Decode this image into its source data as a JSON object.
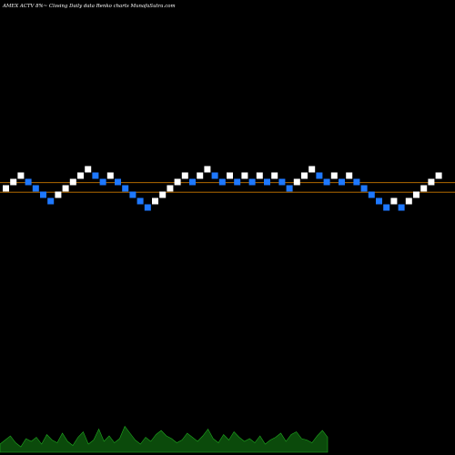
{
  "header": {
    "title": "AMEX  ACTV 8%~  Closing Daily data  Renko  charts MunafaSutra.com"
  },
  "colors": {
    "background": "#000000",
    "up_brick": "#ffffff",
    "down_brick": "#1e78ff",
    "reference_line": "#cc7a00",
    "volume_fill": "#0b4a0b",
    "volume_stroke": "#1fa81f"
  },
  "chart_data": {
    "type": "renko",
    "title": "AMEX  ACTV 8%~  Closing Daily data  Renko  charts MunafaSutra.com",
    "bricks": [
      {
        "level": 0,
        "dir": "up"
      },
      {
        "level": 1,
        "dir": "up"
      },
      {
        "level": 2,
        "dir": "up"
      },
      {
        "level": 1,
        "dir": "down"
      },
      {
        "level": 0,
        "dir": "down"
      },
      {
        "level": -1,
        "dir": "down"
      },
      {
        "level": -2,
        "dir": "down"
      },
      {
        "level": -1,
        "dir": "up"
      },
      {
        "level": 0,
        "dir": "up"
      },
      {
        "level": 1,
        "dir": "up"
      },
      {
        "level": 2,
        "dir": "up"
      },
      {
        "level": 3,
        "dir": "up"
      },
      {
        "level": 2,
        "dir": "down"
      },
      {
        "level": 1,
        "dir": "down"
      },
      {
        "level": 2,
        "dir": "up"
      },
      {
        "level": 1,
        "dir": "down"
      },
      {
        "level": 0,
        "dir": "down"
      },
      {
        "level": -1,
        "dir": "down"
      },
      {
        "level": -2,
        "dir": "down"
      },
      {
        "level": -3,
        "dir": "down"
      },
      {
        "level": -2,
        "dir": "up"
      },
      {
        "level": -1,
        "dir": "up"
      },
      {
        "level": 0,
        "dir": "up"
      },
      {
        "level": 1,
        "dir": "up"
      },
      {
        "level": 2,
        "dir": "up"
      },
      {
        "level": 1,
        "dir": "down"
      },
      {
        "level": 2,
        "dir": "up"
      },
      {
        "level": 3,
        "dir": "up"
      },
      {
        "level": 2,
        "dir": "down"
      },
      {
        "level": 1,
        "dir": "down"
      },
      {
        "level": 2,
        "dir": "up"
      },
      {
        "level": 1,
        "dir": "down"
      },
      {
        "level": 2,
        "dir": "up"
      },
      {
        "level": 1,
        "dir": "down"
      },
      {
        "level": 2,
        "dir": "up"
      },
      {
        "level": 1,
        "dir": "down"
      },
      {
        "level": 2,
        "dir": "up"
      },
      {
        "level": 1,
        "dir": "down"
      },
      {
        "level": 0,
        "dir": "down"
      },
      {
        "level": 1,
        "dir": "up"
      },
      {
        "level": 2,
        "dir": "up"
      },
      {
        "level": 3,
        "dir": "up"
      },
      {
        "level": 2,
        "dir": "down"
      },
      {
        "level": 1,
        "dir": "down"
      },
      {
        "level": 2,
        "dir": "up"
      },
      {
        "level": 1,
        "dir": "down"
      },
      {
        "level": 2,
        "dir": "up"
      },
      {
        "level": 1,
        "dir": "down"
      },
      {
        "level": 0,
        "dir": "down"
      },
      {
        "level": -1,
        "dir": "down"
      },
      {
        "level": -2,
        "dir": "down"
      },
      {
        "level": -3,
        "dir": "down"
      },
      {
        "level": -2,
        "dir": "up"
      },
      {
        "level": -3,
        "dir": "down"
      },
      {
        "level": -2,
        "dir": "up"
      },
      {
        "level": -1,
        "dir": "up"
      },
      {
        "level": 0,
        "dir": "up"
      },
      {
        "level": 1,
        "dir": "up"
      },
      {
        "level": 2,
        "dir": "up"
      }
    ],
    "reference_lines": [
      {
        "level": -0.6
      },
      {
        "level": 0.9
      }
    ],
    "volume": [
      0.3,
      0.45,
      0.6,
      0.35,
      0.2,
      0.5,
      0.4,
      0.55,
      0.3,
      0.65,
      0.45,
      0.35,
      0.7,
      0.4,
      0.25,
      0.55,
      0.75,
      0.3,
      0.45,
      0.85,
      0.4,
      0.6,
      0.35,
      0.5,
      0.95,
      0.7,
      0.45,
      0.3,
      0.55,
      0.4,
      0.65,
      0.8,
      0.6,
      0.5,
      0.35,
      0.45,
      0.7,
      0.55,
      0.4,
      0.6,
      0.85,
      0.5,
      0.35,
      0.65,
      0.45,
      0.75,
      0.55,
      0.4,
      0.5,
      0.35,
      0.6,
      0.3,
      0.45,
      0.55,
      0.7,
      0.4,
      0.65,
      0.75,
      0.5,
      0.45,
      0.35,
      0.6,
      0.8,
      0.55
    ]
  }
}
